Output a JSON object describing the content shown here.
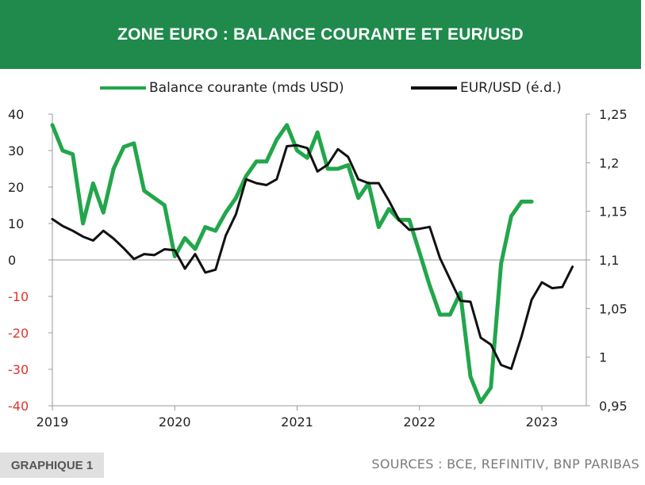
{
  "header": {
    "title": "ZONE EURO : BALANCE COURANTE ET EUR/USD"
  },
  "footer": {
    "tag": "GRAPHIQUE 1",
    "sources": "SOURCES : BCE, REFINITIV, BNP PARIBAS"
  },
  "colors": {
    "header_bg": "#1f8a4c",
    "balance": "#22a64b",
    "eurusd": "#111111",
    "negative_tick": "#e0332b"
  },
  "chart_data": {
    "type": "line",
    "title": "ZONE EURO : BALANCE COURANTE ET EUR/USD",
    "legend_position": "top",
    "grid": false,
    "x_ticks": [
      "2019",
      "2020",
      "2021",
      "2022",
      "2023"
    ],
    "xlim": [
      "2019-01",
      "2023-04"
    ],
    "y_left": {
      "ylim": [
        -40,
        40
      ],
      "ticks": [
        "40",
        "30",
        "20",
        "10",
        "0",
        "-10",
        "-20",
        "-30",
        "-40"
      ]
    },
    "y_right": {
      "ylim": [
        0.95,
        1.25
      ],
      "ticks": [
        "1,25",
        "1,2",
        "1,15",
        "1,1",
        "1,05",
        "1",
        "0,95"
      ]
    },
    "series": [
      {
        "name": "Balance courante (mds USD)",
        "axis": "left",
        "color": "#22a64b",
        "x": [
          "2019-01",
          "2019-02",
          "2019-03",
          "2019-04",
          "2019-05",
          "2019-06",
          "2019-07",
          "2019-08",
          "2019-09",
          "2019-10",
          "2019-11",
          "2019-12",
          "2020-01",
          "2020-02",
          "2020-03",
          "2020-04",
          "2020-05",
          "2020-06",
          "2020-07",
          "2020-08",
          "2020-09",
          "2020-10",
          "2020-11",
          "2020-12",
          "2021-01",
          "2021-02",
          "2021-03",
          "2021-04",
          "2021-05",
          "2021-06",
          "2021-07",
          "2021-08",
          "2021-09",
          "2021-10",
          "2021-11",
          "2021-12",
          "2022-01",
          "2022-02",
          "2022-03",
          "2022-04",
          "2022-05",
          "2022-06",
          "2022-07",
          "2022-08",
          "2022-09",
          "2022-10",
          "2022-11",
          "2022-12"
        ],
        "values": [
          37,
          30,
          29,
          10,
          21,
          13,
          25,
          31,
          32,
          19,
          17,
          15,
          1,
          6,
          3,
          9,
          8,
          13,
          17,
          23,
          27,
          27,
          33,
          37,
          30,
          28,
          35,
          25,
          25,
          26,
          17,
          21,
          9,
          14,
          11,
          11,
          2,
          -7,
          -15,
          -15,
          -9,
          -32,
          -39,
          -35,
          -1,
          12,
          16,
          16
        ]
      },
      {
        "name": "EUR/USD (é.d.)",
        "axis": "right",
        "color": "#111111",
        "x": [
          "2019-01",
          "2019-02",
          "2019-03",
          "2019-04",
          "2019-05",
          "2019-06",
          "2019-07",
          "2019-08",
          "2019-09",
          "2019-10",
          "2019-11",
          "2019-12",
          "2020-01",
          "2020-02",
          "2020-03",
          "2020-04",
          "2020-05",
          "2020-06",
          "2020-07",
          "2020-08",
          "2020-09",
          "2020-10",
          "2020-11",
          "2020-12",
          "2021-01",
          "2021-02",
          "2021-03",
          "2021-04",
          "2021-05",
          "2021-06",
          "2021-07",
          "2021-08",
          "2021-09",
          "2021-10",
          "2021-11",
          "2021-12",
          "2022-01",
          "2022-02",
          "2022-03",
          "2022-04",
          "2022-05",
          "2022-06",
          "2022-07",
          "2022-08",
          "2022-09",
          "2022-10",
          "2022-11",
          "2022-12",
          "2023-01",
          "2023-02",
          "2023-03",
          "2023-04"
        ],
        "values": [
          1.142,
          1.135,
          1.13,
          1.124,
          1.12,
          1.13,
          1.122,
          1.112,
          1.101,
          1.106,
          1.105,
          1.111,
          1.11,
          1.091,
          1.106,
          1.087,
          1.09,
          1.125,
          1.147,
          1.183,
          1.179,
          1.177,
          1.183,
          1.217,
          1.218,
          1.215,
          1.191,
          1.198,
          1.214,
          1.206,
          1.183,
          1.179,
          1.179,
          1.161,
          1.141,
          1.131,
          1.132,
          1.134,
          1.102,
          1.08,
          1.058,
          1.057,
          1.02,
          1.013,
          0.992,
          0.988,
          1.021,
          1.059,
          1.077,
          1.071,
          1.072,
          1.093
        ]
      }
    ]
  }
}
